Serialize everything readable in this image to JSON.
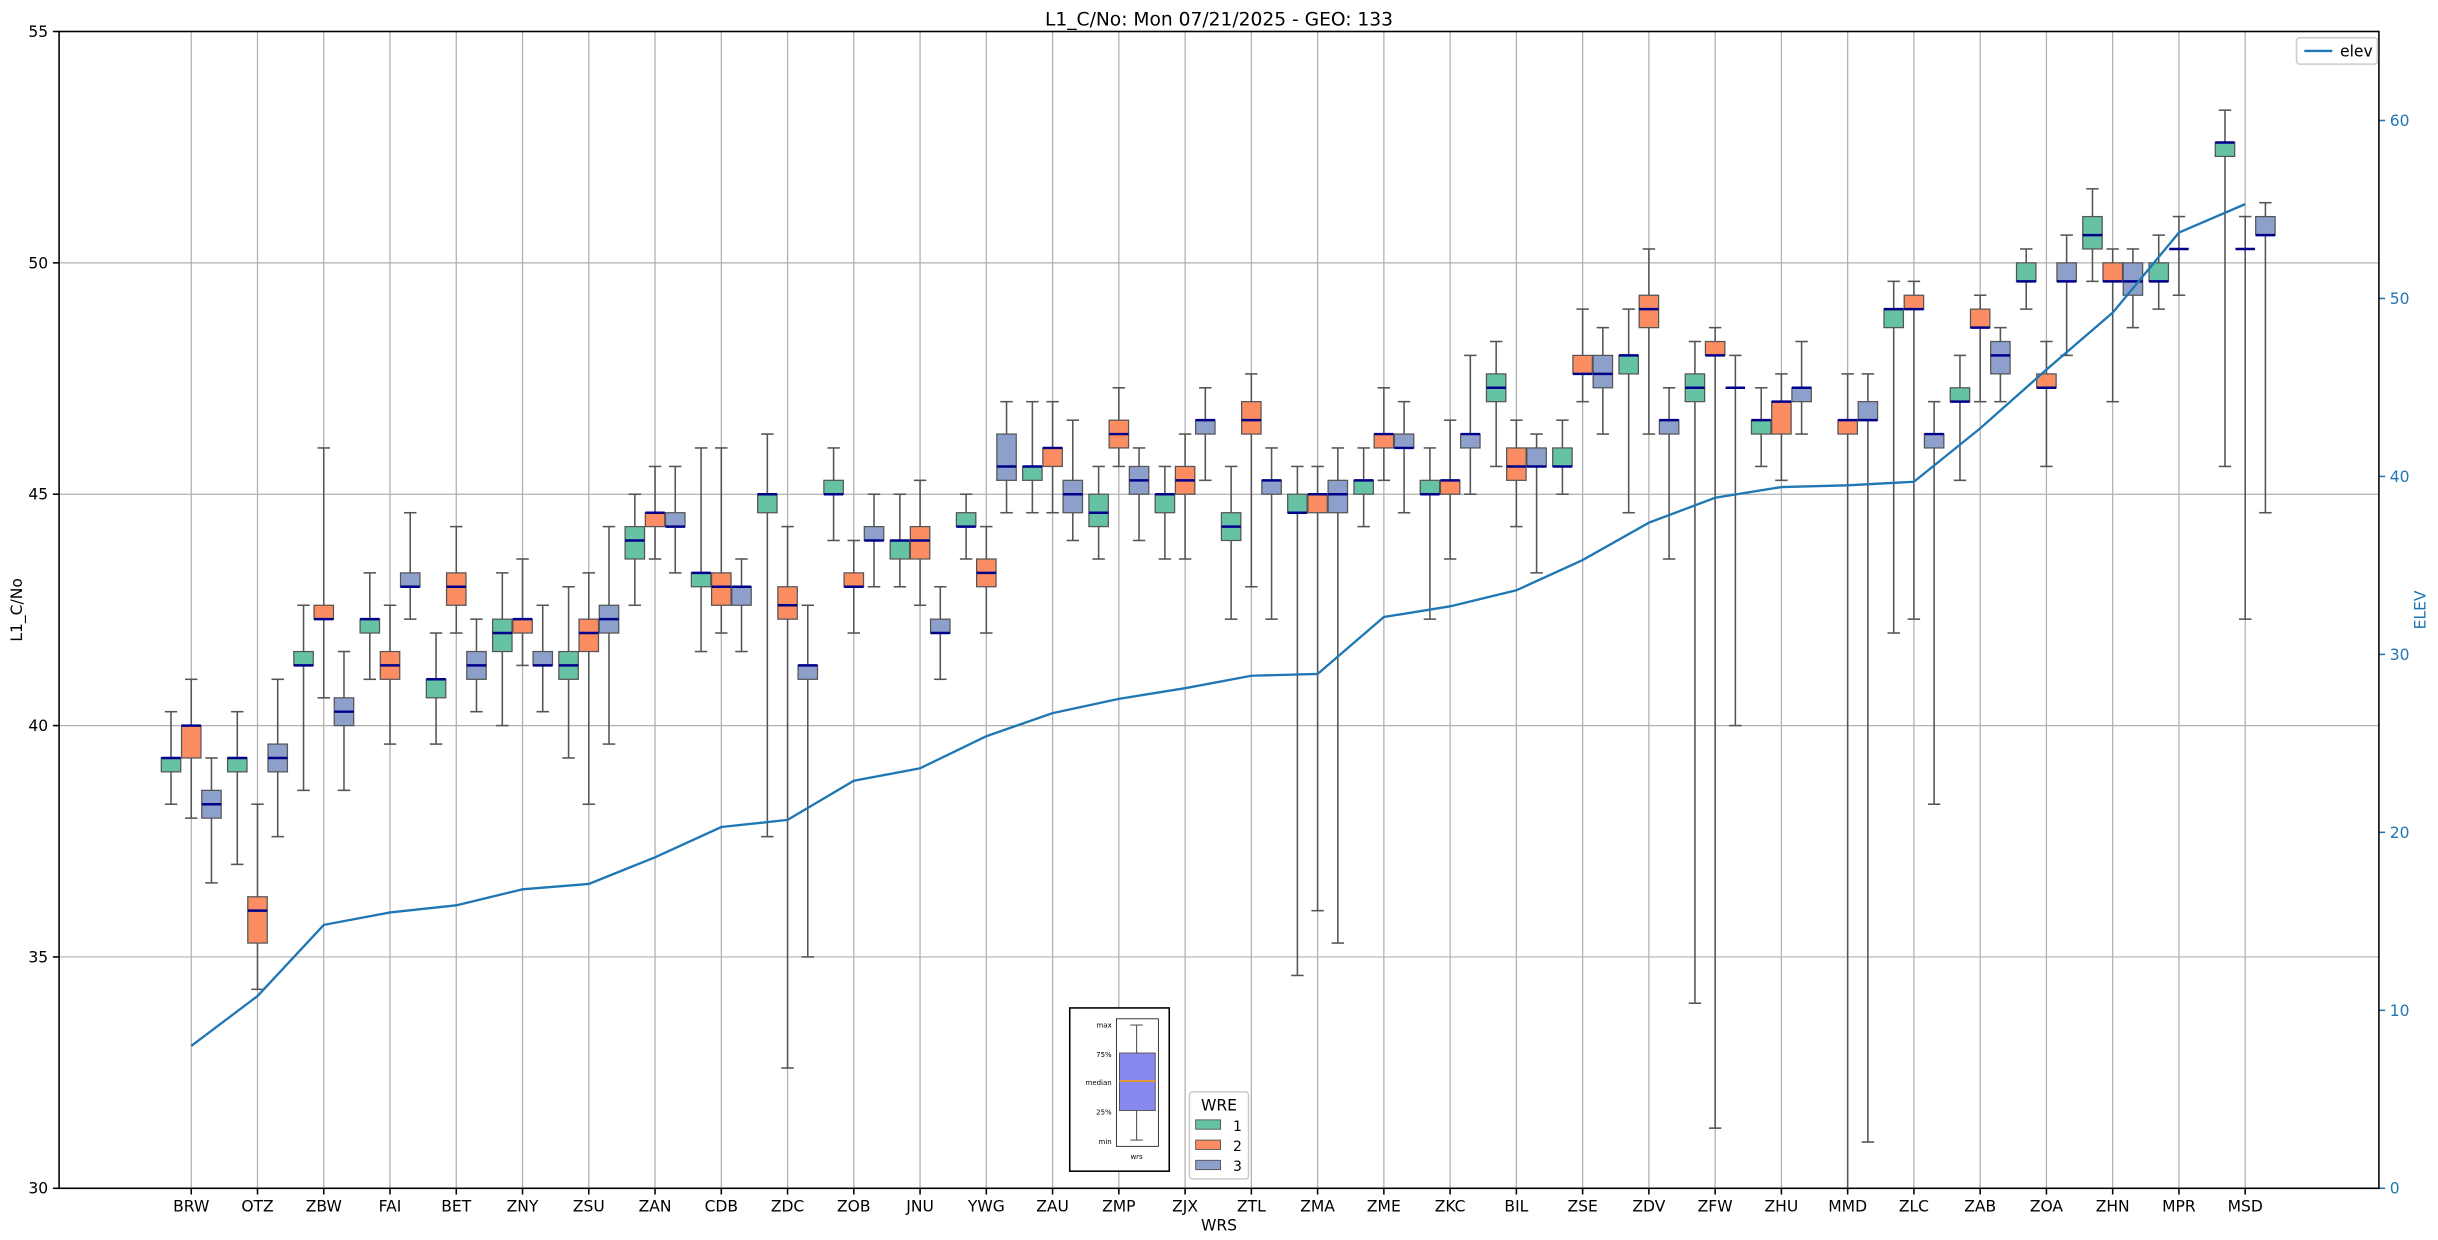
{
  "chart_data": {
    "type": "box",
    "title": "L1_C/No: Mon 07/21/2025 - GEO: 133",
    "xlabel": "WRS",
    "ylabel": "L1_C/No",
    "y2label": "ELEV",
    "ylim": [
      30,
      55
    ],
    "yticks": [
      30,
      35,
      40,
      45,
      50,
      55
    ],
    "y2lim": [
      0,
      65
    ],
    "y2ticks": [
      0,
      10,
      20,
      30,
      40,
      50,
      60
    ],
    "grid": true,
    "categories": [
      "BRW",
      "OTZ",
      "ZBW",
      "FAI",
      "BET",
      "ZNY",
      "ZSU",
      "ZAN",
      "CDB",
      "ZDC",
      "ZOB",
      "JNU",
      "YWG",
      "ZAU",
      "ZMP",
      "ZJX",
      "ZTL",
      "ZMA",
      "ZME",
      "ZKC",
      "BIL",
      "ZSE",
      "ZDV",
      "ZFW",
      "ZHU",
      "MMD",
      "ZLC",
      "ZAB",
      "ZOA",
      "ZHN",
      "MPR",
      "MSD"
    ],
    "box_format": [
      "min",
      "q1",
      "median",
      "q3",
      "max"
    ],
    "series": [
      {
        "name": "1",
        "color": "#66c2a5",
        "boxes": [
          [
            38.3,
            39.0,
            39.3,
            39.3,
            40.3
          ],
          [
            37.0,
            39.0,
            39.3,
            39.3,
            40.3
          ],
          [
            38.6,
            41.3,
            41.3,
            41.6,
            42.6
          ],
          [
            41.0,
            42.0,
            42.3,
            42.3,
            43.3
          ],
          [
            39.6,
            40.6,
            41.0,
            41.0,
            42.0
          ],
          [
            40.0,
            41.6,
            42.0,
            42.3,
            43.3
          ],
          [
            39.3,
            41.0,
            41.3,
            41.6,
            43.0
          ],
          [
            42.6,
            43.6,
            44.0,
            44.3,
            45.0
          ],
          [
            41.6,
            43.0,
            43.3,
            43.3,
            46.0
          ],
          [
            37.6,
            44.6,
            45.0,
            45.0,
            46.3
          ],
          [
            44.0,
            45.0,
            45.0,
            45.3,
            46.0
          ],
          [
            43.0,
            43.6,
            44.0,
            44.0,
            45.0
          ],
          [
            43.6,
            44.3,
            44.3,
            44.6,
            45.0
          ],
          [
            44.6,
            45.3,
            45.6,
            45.6,
            47.0
          ],
          [
            43.6,
            44.3,
            44.6,
            45.0,
            45.6
          ],
          [
            43.6,
            44.6,
            45.0,
            45.0,
            45.6
          ],
          [
            42.3,
            44.0,
            44.3,
            44.6,
            45.6
          ],
          [
            34.6,
            44.6,
            44.6,
            45.0,
            45.6
          ],
          [
            44.3,
            45.0,
            45.3,
            45.3,
            46.0
          ],
          [
            42.3,
            45.0,
            45.0,
            45.3,
            46.0
          ],
          [
            45.6,
            47.0,
            47.3,
            47.6,
            48.3
          ],
          [
            45.0,
            45.6,
            45.6,
            46.0,
            46.6
          ],
          [
            44.6,
            47.6,
            48.0,
            48.0,
            49.0
          ],
          [
            34.0,
            47.0,
            47.3,
            47.6,
            48.3
          ],
          [
            45.6,
            46.3,
            46.6,
            46.6,
            47.3
          ],
          null,
          [
            42.0,
            48.6,
            49.0,
            49.0,
            49.6
          ],
          [
            45.3,
            47.0,
            47.0,
            47.3,
            48.0
          ],
          [
            49.0,
            49.6,
            49.6,
            50.0,
            50.3
          ],
          [
            49.6,
            50.3,
            50.6,
            51.0,
            51.6
          ],
          [
            49.0,
            49.6,
            49.6,
            50.0,
            50.6
          ],
          [
            45.6,
            52.3,
            52.6,
            52.6,
            53.3
          ]
        ]
      },
      {
        "name": "2",
        "color": "#fc8d62",
        "boxes": [
          [
            38.0,
            39.3,
            40.0,
            40.0,
            41.0
          ],
          [
            34.3,
            35.3,
            36.0,
            36.3,
            38.3
          ],
          [
            40.6,
            42.3,
            42.3,
            42.6,
            46.0
          ],
          [
            39.6,
            41.0,
            41.3,
            41.6,
            42.6
          ],
          [
            42.0,
            42.6,
            43.0,
            43.3,
            44.3
          ],
          [
            41.3,
            42.0,
            42.3,
            42.3,
            43.6
          ],
          [
            38.3,
            41.6,
            42.0,
            42.3,
            43.3
          ],
          [
            43.6,
            44.3,
            44.6,
            44.6,
            45.6
          ],
          [
            42.0,
            42.6,
            43.0,
            43.3,
            46.0
          ],
          [
            32.6,
            42.3,
            42.6,
            43.0,
            44.3
          ],
          [
            42.0,
            43.0,
            43.0,
            43.3,
            44.0
          ],
          [
            42.6,
            43.6,
            44.0,
            44.3,
            45.3
          ],
          [
            42.0,
            43.0,
            43.3,
            43.6,
            44.3
          ],
          [
            44.6,
            45.6,
            46.0,
            46.0,
            47.0
          ],
          [
            45.6,
            46.0,
            46.3,
            46.6,
            47.3
          ],
          [
            43.6,
            45.0,
            45.3,
            45.6,
            46.3
          ],
          [
            43.0,
            46.3,
            46.6,
            47.0,
            47.6
          ],
          [
            36.0,
            44.6,
            45.0,
            45.0,
            45.6
          ],
          [
            45.3,
            46.0,
            46.3,
            46.3,
            47.3
          ],
          [
            43.6,
            45.0,
            45.3,
            45.3,
            46.6
          ],
          [
            44.3,
            45.3,
            45.6,
            46.0,
            46.6
          ],
          [
            47.0,
            47.6,
            47.6,
            48.0,
            49.0
          ],
          [
            46.3,
            48.6,
            49.0,
            49.3,
            50.3
          ],
          [
            31.3,
            48.0,
            48.0,
            48.3,
            48.6
          ],
          [
            45.3,
            46.3,
            47.0,
            47.0,
            47.6
          ],
          [
            30.0,
            46.3,
            46.6,
            46.6,
            47.6
          ],
          [
            42.3,
            49.0,
            49.0,
            49.3,
            49.6
          ],
          [
            47.0,
            48.6,
            48.6,
            49.0,
            49.3
          ],
          [
            45.6,
            47.3,
            47.3,
            47.6,
            48.3
          ],
          [
            47.0,
            49.6,
            49.6,
            50.0,
            50.3
          ],
          [
            49.3,
            50.3,
            50.3,
            50.3,
            51.0
          ],
          [
            42.3,
            50.3,
            50.3,
            50.3,
            51.0
          ]
        ]
      },
      {
        "name": "3",
        "color": "#8da0cb",
        "boxes": [
          [
            36.6,
            38.0,
            38.3,
            38.6,
            39.3
          ],
          [
            37.6,
            39.0,
            39.3,
            39.6,
            41.0
          ],
          [
            38.6,
            40.0,
            40.3,
            40.6,
            41.6
          ],
          [
            42.3,
            43.0,
            43.0,
            43.3,
            44.6
          ],
          [
            40.3,
            41.0,
            41.3,
            41.6,
            42.3
          ],
          [
            40.3,
            41.3,
            41.3,
            41.6,
            42.6
          ],
          [
            39.6,
            42.0,
            42.3,
            42.6,
            44.3
          ],
          [
            43.3,
            44.3,
            44.3,
            44.6,
            45.6
          ],
          [
            41.6,
            42.6,
            43.0,
            43.0,
            43.6
          ],
          [
            35.0,
            41.0,
            41.3,
            41.3,
            42.6
          ],
          [
            43.0,
            44.0,
            44.0,
            44.3,
            45.0
          ],
          [
            41.0,
            42.0,
            42.0,
            42.3,
            43.0
          ],
          [
            44.6,
            45.3,
            45.6,
            46.3,
            47.0
          ],
          [
            44.0,
            44.6,
            45.0,
            45.3,
            46.6
          ],
          [
            44.0,
            45.0,
            45.3,
            45.6,
            46.0
          ],
          [
            45.3,
            46.3,
            46.6,
            46.6,
            47.3
          ],
          [
            42.3,
            45.0,
            45.3,
            45.3,
            46.0
          ],
          [
            35.3,
            44.6,
            45.0,
            45.3,
            46.0
          ],
          [
            44.6,
            46.0,
            46.0,
            46.3,
            47.0
          ],
          [
            45.0,
            46.0,
            46.3,
            46.3,
            48.0
          ],
          [
            43.3,
            45.6,
            45.6,
            46.0,
            46.3
          ],
          [
            46.3,
            47.3,
            47.6,
            48.0,
            48.6
          ],
          [
            43.6,
            46.3,
            46.6,
            46.6,
            47.3
          ],
          [
            40.0,
            47.3,
            47.3,
            47.3,
            48.0
          ],
          [
            46.3,
            47.0,
            47.3,
            47.3,
            48.3
          ],
          [
            31.0,
            46.6,
            46.6,
            47.0,
            47.6
          ],
          [
            38.3,
            46.0,
            46.3,
            46.3,
            47.0
          ],
          [
            47.0,
            47.6,
            48.0,
            48.3,
            48.6
          ],
          [
            48.0,
            49.6,
            49.6,
            50.0,
            50.6
          ],
          [
            48.6,
            49.3,
            49.6,
            50.0,
            50.3
          ],
          null,
          [
            44.6,
            50.6,
            50.6,
            51.0,
            51.3
          ]
        ]
      }
    ],
    "elev": {
      "name": "elev",
      "color": "#1f77b4",
      "axis": "right",
      "values": [
        8.0,
        10.8,
        14.8,
        15.5,
        15.9,
        16.8,
        17.1,
        18.6,
        20.3,
        20.7,
        22.9,
        23.6,
        25.4,
        26.7,
        27.5,
        28.1,
        28.8,
        28.9,
        32.1,
        32.7,
        33.6,
        35.3,
        37.4,
        38.8,
        39.4,
        39.5,
        39.7,
        42.7,
        46.0,
        49.2,
        53.7,
        55.3
      ]
    },
    "legend": {
      "title": "WRE",
      "entries": [
        "1",
        "2",
        "3"
      ],
      "placement": "bottom-center"
    },
    "elev_legend": {
      "label": "elev",
      "placement": "top-right"
    },
    "inset": {
      "labels": [
        "max",
        "75%",
        "median",
        "25%",
        "min"
      ],
      "xlabel": "wrs",
      "fill": "#8888ee",
      "median_color": "#ff9900"
    },
    "median_color": "#00008b"
  }
}
